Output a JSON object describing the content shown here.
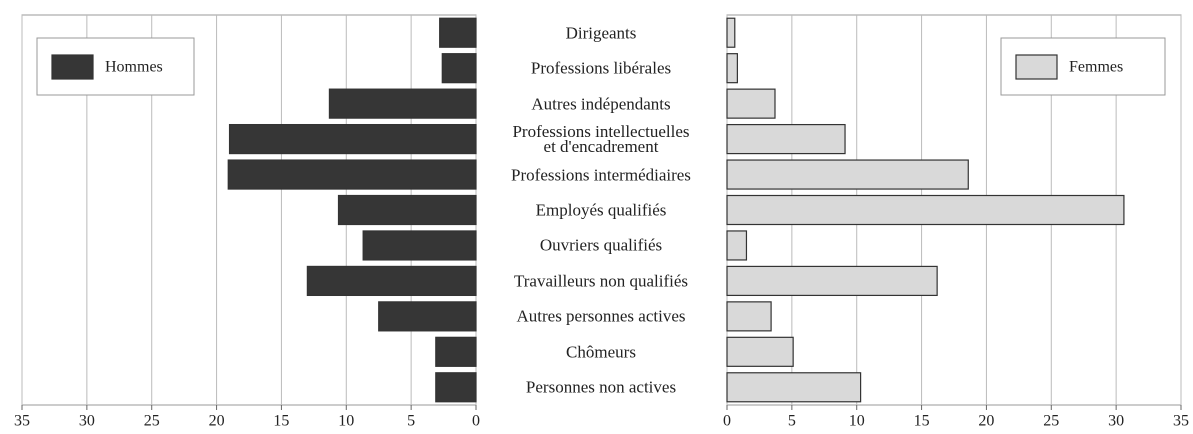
{
  "chart_data": {
    "type": "bar",
    "orientation": "horizontal",
    "categories": [
      "Dirigeants",
      "Professions libérales",
      "Autres indépendants",
      "Professions intellectuelles\net d'encadrement",
      "Professions intermédiaires",
      "Employés qualifiés",
      "Ouvriers qualifiés",
      "Travailleurs non qualifiés",
      "Autres personnes actives",
      "Chômeurs",
      "Personnes non actives"
    ],
    "series": [
      {
        "name": "Hommes",
        "color": "#363636",
        "values": [
          2.8,
          2.6,
          11.3,
          19.0,
          19.1,
          10.6,
          8.7,
          13.0,
          7.5,
          3.1,
          3.1
        ]
      },
      {
        "name": "Femmes",
        "color": "#d9d9d9",
        "values": [
          0.6,
          0.8,
          3.7,
          9.1,
          18.6,
          30.6,
          1.5,
          16.2,
          3.4,
          5.1,
          10.3
        ]
      }
    ],
    "xlim": [
      0,
      35
    ],
    "xticks": [
      0,
      5,
      10,
      15,
      20,
      25,
      30,
      35
    ],
    "grid": true
  }
}
